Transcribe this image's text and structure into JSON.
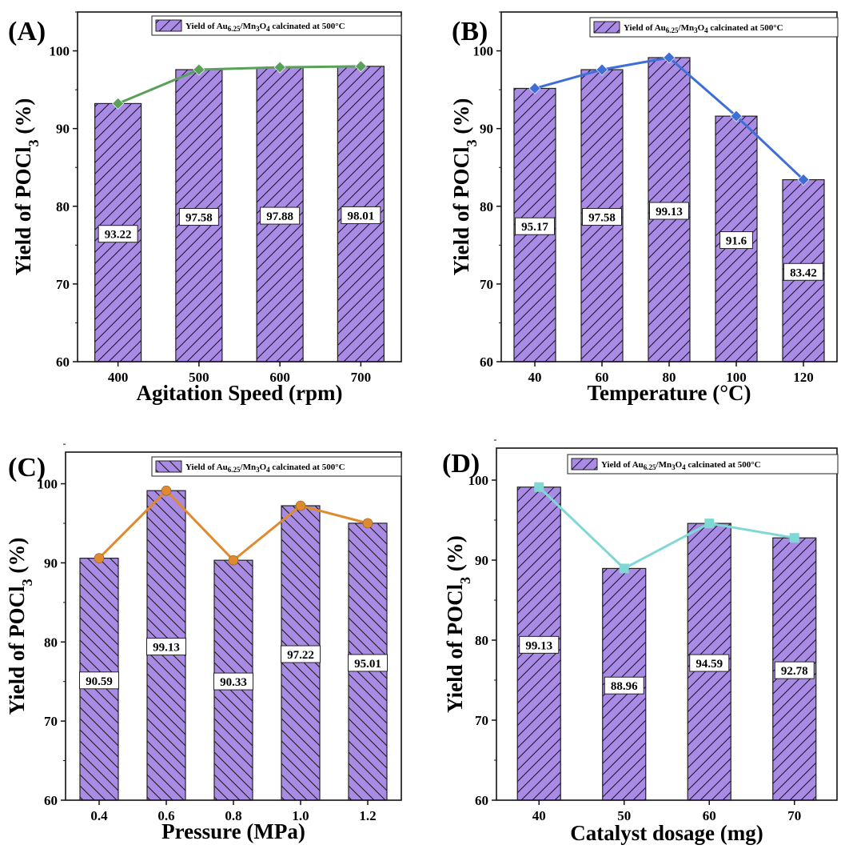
{
  "chart_data": [
    {
      "type": "bar",
      "panel": "(A)",
      "xlabel": "Agitation Speed (rpm)",
      "ylabel": {
        "main": "Yield of POCl",
        "sub": "3",
        "tail": " (%)"
      },
      "legend": {
        "pre": "Yield of Au",
        "s1": "6.25",
        "mid": "/Mn",
        "s2": "3",
        "o": "O",
        "s3": "4",
        "post": " calcinated at 500°C"
      },
      "categories": [
        "400",
        "500",
        "600",
        "700"
      ],
      "values": [
        93.22,
        97.58,
        97.88,
        98.01
      ],
      "data_labels": [
        "93.22",
        "97.58",
        "97.88",
        "98.01"
      ],
      "ylim": [
        60,
        105
      ],
      "yticks": [
        "60",
        "70",
        "80",
        "90",
        "100"
      ],
      "line_color": "#5aa05a",
      "marker": "diamond",
      "bar_color": "#a98be6"
    },
    {
      "type": "bar",
      "panel": "(B)",
      "xlabel": "Temperature (°C)",
      "ylabel": {
        "main": "Yield of POCl",
        "sub": "3",
        "tail": " (%)"
      },
      "legend": {
        "pre": "Yield of Au",
        "s1": "6.25",
        "mid": "/Mn",
        "s2": "3",
        "o": "O",
        "s3": "4",
        "post": " calcinated at 500°C"
      },
      "categories": [
        "40",
        "60",
        "80",
        "100",
        "120"
      ],
      "values": [
        95.17,
        97.58,
        99.13,
        91.6,
        83.42
      ],
      "data_labels": [
        "95.17",
        "97.58",
        "99.13",
        "91.6",
        "83.42"
      ],
      "ylim": [
        60,
        105
      ],
      "yticks": [
        "60",
        "70",
        "80",
        "90",
        "100"
      ],
      "line_color": "#3f6fd6",
      "marker": "diamond",
      "bar_color": "#a98be6"
    },
    {
      "type": "bar",
      "panel": "(C)",
      "xlabel": "Pressure (MPa)",
      "ylabel": {
        "main": "Yield of POCl",
        "sub": "3",
        "tail": " (%)"
      },
      "legend": {
        "pre": "Yield of Au",
        "s1": "6.25",
        "mid": "/Mn",
        "s2": "3",
        "o": "O",
        "s3": "4",
        "post": " calcinated at 500°C"
      },
      "categories": [
        "0.4",
        "0.6",
        "0.8",
        "1.0",
        "1.2"
      ],
      "values": [
        90.59,
        99.13,
        90.33,
        97.22,
        95.01
      ],
      "data_labels": [
        "90.59",
        "99.13",
        "90.33",
        "97.22",
        "95.01"
      ],
      "ylim": [
        60,
        104
      ],
      "yticks": [
        "60",
        "70",
        "80",
        "90",
        "100"
      ],
      "line_color": "#e08a30",
      "marker": "circle",
      "bar_color": "#a98be6"
    },
    {
      "type": "bar",
      "panel": "(D)",
      "xlabel": "Catalyst dosage (mg)",
      "ylabel": {
        "main": "Yield of POCl",
        "sub": "3",
        "tail": " (%)"
      },
      "legend": {
        "pre": "Yield of Au",
        "s1": "6.25",
        "mid": "/Mn",
        "s2": "3",
        "o": "O",
        "s3": "4",
        "post": " calcinated at 500°C"
      },
      "categories": [
        "40",
        "50",
        "60",
        "70"
      ],
      "values": [
        99.13,
        88.96,
        94.59,
        92.78
      ],
      "data_labels": [
        "99.13",
        "88.96",
        "94.59",
        "92.78"
      ],
      "ylim": [
        60,
        104
      ],
      "yticks": [
        "60",
        "70",
        "80",
        "90",
        "100"
      ],
      "line_color": "#7fd8d4",
      "marker": "square",
      "bar_color": "#a98be6"
    }
  ]
}
